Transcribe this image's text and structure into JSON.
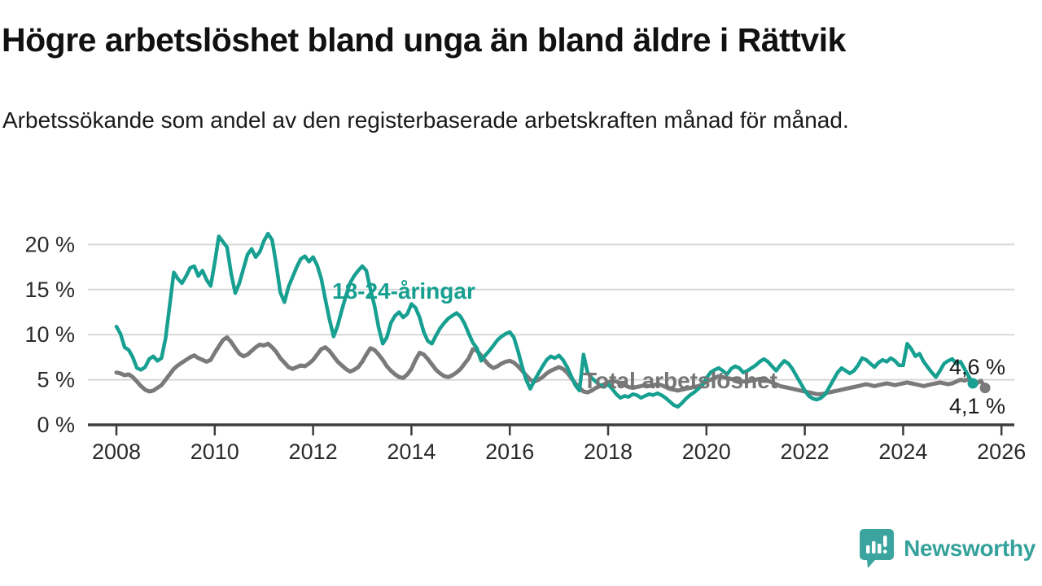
{
  "header": {
    "title": "Högre arbetslöshet bland unga än bland äldre i Rättvik",
    "subtitle": "Arbetssökande som andel av den registerbaserade arbetskraften månad för månad."
  },
  "chart_data": {
    "type": "line",
    "title": "Högre arbetslöshet bland unga än bland äldre i Rättvik",
    "xlabel": "",
    "ylabel": "",
    "x_start": "2008-01",
    "x_interval": "monthly",
    "xlim": [
      2007.4,
      2026.3
    ],
    "ylim": [
      0,
      22
    ],
    "grid": "horizontal",
    "legend_position": "inline-labels",
    "x_ticks": [
      2008,
      2010,
      2012,
      2014,
      2016,
      2018,
      2020,
      2022,
      2024,
      2026
    ],
    "x_tick_labels": [
      "2008",
      "2010",
      "2012",
      "2014",
      "2016",
      "2018",
      "2020",
      "2022",
      "2024",
      "2026"
    ],
    "y_ticks": [
      {
        "value": 0,
        "label": "0 %"
      },
      {
        "value": 5,
        "label": "5 %"
      },
      {
        "value": 10,
        "label": "10 %"
      },
      {
        "value": 15,
        "label": "15 %"
      },
      {
        "value": 20,
        "label": "20 %"
      }
    ],
    "series": [
      {
        "name": "Total arbetslöshet",
        "color": "#7a7a7a",
        "line_width": 5,
        "end_label": "4,1 %",
        "end_value": 4.1,
        "values": [
          5.8,
          5.7,
          5.5,
          5.6,
          5.3,
          4.8,
          4.3,
          3.9,
          3.7,
          3.8,
          4.1,
          4.4,
          5.0,
          5.6,
          6.2,
          6.6,
          6.9,
          7.2,
          7.5,
          7.7,
          7.4,
          7.2,
          7.0,
          7.2,
          8.0,
          8.7,
          9.4,
          9.7,
          9.2,
          8.5,
          7.9,
          7.6,
          7.8,
          8.2,
          8.6,
          8.9,
          8.8,
          9.0,
          8.6,
          8.1,
          7.4,
          6.9,
          6.4,
          6.2,
          6.4,
          6.6,
          6.5,
          6.8,
          7.2,
          7.8,
          8.4,
          8.6,
          8.2,
          7.6,
          7.0,
          6.6,
          6.2,
          5.9,
          6.1,
          6.4,
          7.0,
          7.8,
          8.5,
          8.3,
          7.8,
          7.2,
          6.5,
          6.0,
          5.6,
          5.3,
          5.2,
          5.6,
          6.2,
          7.2,
          8.0,
          7.8,
          7.3,
          6.7,
          6.1,
          5.7,
          5.4,
          5.3,
          5.5,
          5.8,
          6.2,
          6.8,
          7.4,
          8.4,
          8.2,
          7.7,
          7.1,
          6.6,
          6.3,
          6.5,
          6.8,
          7.0,
          7.1,
          6.9,
          6.5,
          6.0,
          5.5,
          5.0,
          4.8,
          5.0,
          5.3,
          5.7,
          6.0,
          6.2,
          6.4,
          6.2,
          5.8,
          5.2,
          4.6,
          4.1,
          3.7,
          3.6,
          3.8,
          4.1,
          4.3,
          4.5,
          4.7,
          4.9,
          4.8,
          4.6,
          4.4,
          4.2,
          4.1,
          4.2,
          4.3,
          4.4,
          4.3,
          4.4,
          4.5,
          4.4,
          4.2,
          4.0,
          3.9,
          3.8,
          3.9,
          4.0,
          4.1,
          4.2,
          4.3,
          4.5,
          4.8,
          5.0,
          5.2,
          5.4,
          5.3,
          5.2,
          5.1,
          5.0,
          4.9,
          4.8,
          4.8,
          4.9,
          5.0,
          5.1,
          5.0,
          4.9,
          4.7,
          4.5,
          4.3,
          4.2,
          4.1,
          4.0,
          3.9,
          3.8,
          3.7,
          3.6,
          3.5,
          3.4,
          3.4,
          3.5,
          3.6,
          3.7,
          3.8,
          3.9,
          4.0,
          4.1,
          4.2,
          4.3,
          4.4,
          4.5,
          4.4,
          4.3,
          4.4,
          4.5,
          4.6,
          4.5,
          4.4,
          4.5,
          4.6,
          4.7,
          4.6,
          4.5,
          4.4,
          4.3,
          4.4,
          4.5,
          4.6,
          4.7,
          4.6,
          4.5,
          4.6,
          4.8,
          5.0,
          4.9,
          5.1,
          4.9,
          4.6,
          4.9,
          4.1
        ]
      },
      {
        "name": "18-24-åringar",
        "color": "#17a091",
        "line_width": 4.5,
        "end_label": "4,6 %",
        "end_value": 4.6,
        "values": [
          10.9,
          10.1,
          8.6,
          8.3,
          7.5,
          6.3,
          6.1,
          6.4,
          7.3,
          7.6,
          7.1,
          7.4,
          9.6,
          13.2,
          16.9,
          16.2,
          15.7,
          16.5,
          17.4,
          17.6,
          16.5,
          17.1,
          16.1,
          15.4,
          18.0,
          20.9,
          20.3,
          19.7,
          16.8,
          14.6,
          15.7,
          17.3,
          18.9,
          19.5,
          18.6,
          19.2,
          20.4,
          21.2,
          20.5,
          17.8,
          14.7,
          13.6,
          15.3,
          16.4,
          17.5,
          18.4,
          18.7,
          18.1,
          18.6,
          17.7,
          16.2,
          13.9,
          11.7,
          9.8,
          11.0,
          12.7,
          14.3,
          15.7,
          16.5,
          17.1,
          17.6,
          17.1,
          15.0,
          13.2,
          10.8,
          9.0,
          9.7,
          11.3,
          12.1,
          12.5,
          11.9,
          12.3,
          13.4,
          13.0,
          11.9,
          10.3,
          9.3,
          9.0,
          9.9,
          10.7,
          11.3,
          11.8,
          12.1,
          12.4,
          12.0,
          11.2,
          10.1,
          9.1,
          8.5,
          7.1,
          7.7,
          8.2,
          8.8,
          9.4,
          9.8,
          10.1,
          10.3,
          9.7,
          8.2,
          6.5,
          5.0,
          4.0,
          4.9,
          5.7,
          6.5,
          7.2,
          7.6,
          7.4,
          7.7,
          7.2,
          6.4,
          5.4,
          4.4,
          3.8,
          7.8,
          5.8,
          5.2,
          4.8,
          4.4,
          4.2,
          4.5,
          4.0,
          3.4,
          3.0,
          3.2,
          3.1,
          3.4,
          3.3,
          3.0,
          3.2,
          3.4,
          3.3,
          3.5,
          3.3,
          3.0,
          2.6,
          2.2,
          2.0,
          2.4,
          2.9,
          3.3,
          3.6,
          4.0,
          4.4,
          5.2,
          5.8,
          6.1,
          6.3,
          6.0,
          5.6,
          6.2,
          6.5,
          6.3,
          5.8,
          6.0,
          6.3,
          6.6,
          7.0,
          7.3,
          7.0,
          6.5,
          6.0,
          6.6,
          7.1,
          6.8,
          6.2,
          5.4,
          4.6,
          3.8,
          3.2,
          2.9,
          2.8,
          3.0,
          3.4,
          4.2,
          5.0,
          5.8,
          6.3,
          6.0,
          5.7,
          6.0,
          6.6,
          7.4,
          7.2,
          6.8,
          6.4,
          6.9,
          7.2,
          7.0,
          7.4,
          7.1,
          6.6,
          6.6,
          9.0,
          8.4,
          7.6,
          7.9,
          7.0,
          6.4,
          5.8,
          5.3,
          6.0,
          6.8,
          7.1,
          7.3,
          6.8,
          7.0,
          6.2,
          5.4,
          4.6
        ]
      }
    ],
    "style": {
      "gridline_color": "#d8d8d8",
      "axis_color": "#3d3d3d",
      "tick_label_color": "#2b2b2b"
    }
  },
  "labels": {
    "youth_series": "18-24-åringar",
    "total_series": "Total arbetslöshet",
    "youth_end": "4,6 %",
    "total_end": "4,1 %"
  },
  "branding": {
    "logo_text": "Newsworthy",
    "logo_color": "#3ba49e",
    "logo_icon": "newsworthy-speech-bubble-bar-chart-icon"
  }
}
